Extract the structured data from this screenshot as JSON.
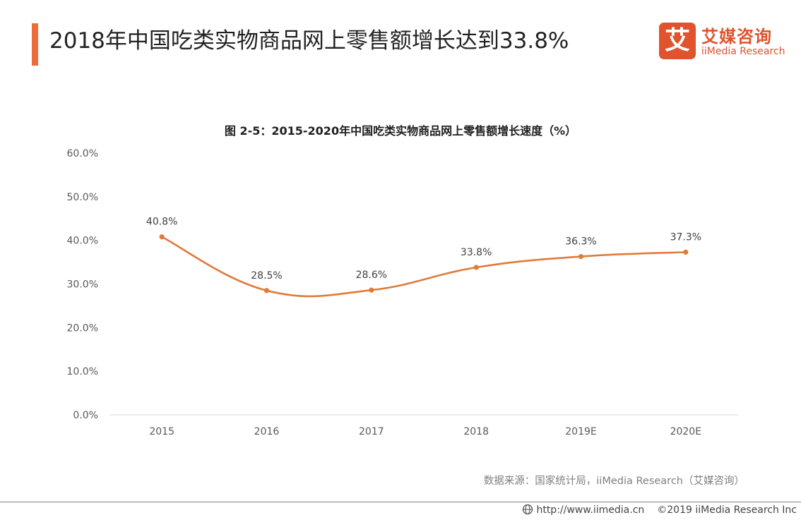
{
  "page": {
    "title": "2018年中国吃类实物商品网上零售额增长达到33.8%",
    "accent_color": "#ee6b3a"
  },
  "logo": {
    "mark": "艾",
    "name_cn": "艾媒咨询",
    "name_en": "iiMedia Research",
    "color": "#e0532c"
  },
  "chart_data": {
    "type": "line",
    "title": "图 2-5：2015-2020年中国吃类实物商品网上零售额增长速度（%）",
    "categories": [
      "2015",
      "2016",
      "2017",
      "2018",
      "2019E",
      "2020E"
    ],
    "series": [
      {
        "values": [
          40.8,
          28.5,
          28.6,
          33.8,
          36.3,
          37.3
        ],
        "labels": [
          "40.8%",
          "28.5%",
          "28.6%",
          "33.8%",
          "36.3%",
          "37.3%"
        ],
        "color": "#e07b39"
      }
    ],
    "ylim": [
      0,
      60
    ],
    "yticks": [
      "0.0%",
      "10.0%",
      "20.0%",
      "30.0%",
      "40.0%",
      "50.0%",
      "60.0%"
    ],
    "grid": false,
    "smooth": true
  },
  "source": "数据来源：国家统计局，iiMedia Research（艾媒咨询）",
  "footer": {
    "url": "http://www.iimedia.cn",
    "copyright": "©2019  iiMedia Research  Inc",
    "icon": "globe-icon"
  }
}
